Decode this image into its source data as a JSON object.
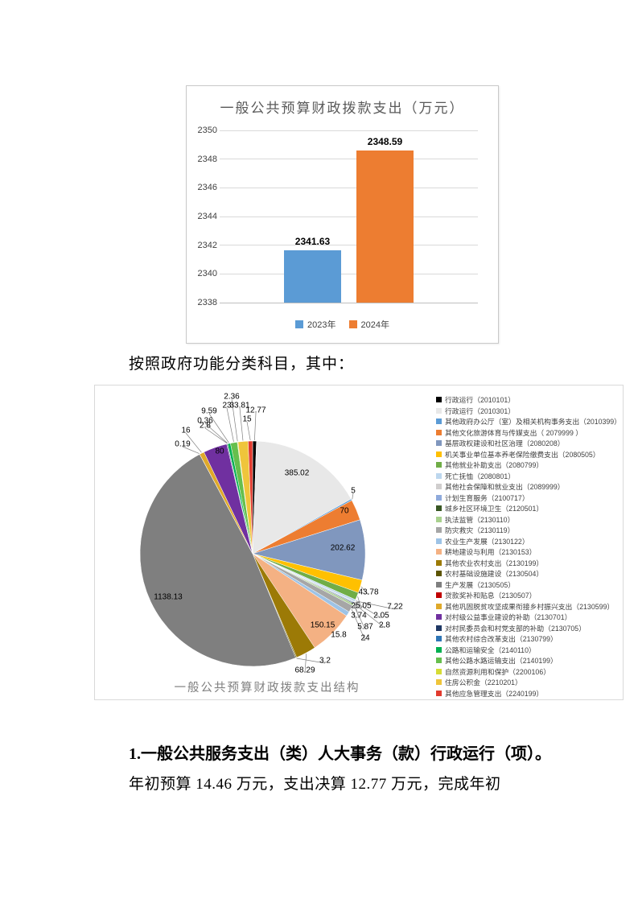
{
  "document": {
    "intro": "按照政府功能分类科目，其中：",
    "section_heading": "1.一般公共服务支出（类）人大事务（款）行政运行（项）。",
    "section_body": "年初预算 14.46 万元，支出决算 12.77 万元，完成年初"
  },
  "chart_data": [
    {
      "type": "bar",
      "title": "一般公共预算财政拨款支出（万元）",
      "categories": [
        "2023年",
        "2024年"
      ],
      "values": [
        2341.63,
        2348.59
      ],
      "value_labels": [
        "2341.63",
        "2348.59"
      ],
      "colors": [
        "#5B9BD5",
        "#ED7D31"
      ],
      "ylim": [
        2338,
        2350
      ],
      "ytick_step": 2,
      "grid": true,
      "legend_position": "bottom"
    },
    {
      "type": "pie",
      "title": "一般公共预算财政拨款支出结构",
      "legend_position": "right",
      "total": 2348.59,
      "slices": [
        {
          "label": "行政运行（2010101）",
          "value": 12.77,
          "color": "#000000"
        },
        {
          "label": "行政运行（2010301）",
          "value": 385.02,
          "color": "#E8E8E8"
        },
        {
          "label": "其他政府办公厅（室）及相关机构事务支出（2010399）",
          "value": 5,
          "color": "#5B9BD5"
        },
        {
          "label": "其他文化旅游体育与传媒支出（ 2079999 ）",
          "value": 70,
          "color": "#ED7D31"
        },
        {
          "label": "基层政权建设和社区治理（2080208）",
          "value": 202.62,
          "color": "#8097BE"
        },
        {
          "label": "机关事业单位基本养老保险缴费支出（2080505）",
          "value": 43.78,
          "color": "#FFC000"
        },
        {
          "label": "其他就业补助支出（2080799）",
          "value": 25.05,
          "color": "#70AD47"
        },
        {
          "label": "死亡抚恤（2080801）",
          "value": 7.22,
          "color": "#BDD7EE"
        },
        {
          "label": "其他社会保障和就业支出（2089999）",
          "value": 2.05,
          "color": "#D0CECE"
        },
        {
          "label": "计划生育服务（2100717）",
          "value": 3.74,
          "color": "#8FAADC"
        },
        {
          "label": "城乡社区环境卫生（2120501）",
          "value": 2.8,
          "color": "#385723"
        },
        {
          "label": "执法监管（2130110）",
          "value": 5.87,
          "color": "#A9D18E"
        },
        {
          "label": "防灾救灾（2130119）",
          "value": 24,
          "color": "#A6A6A6"
        },
        {
          "label": "农业生产发展（2130122）",
          "value": 15.8,
          "color": "#9DC3E6"
        },
        {
          "label": "耕地建设与利用（2130153）",
          "value": 150.15,
          "color": "#F4B183"
        },
        {
          "label": "其他农业农村支出（2130199）",
          "value": 68.29,
          "color": "#9C7A06"
        },
        {
          "label": "农村基础设施建设（2130504）",
          "value": 3.2,
          "color": "#5C5400"
        },
        {
          "label": "生产发展（2130505）",
          "value": 1138.13,
          "color": "#7F7F7F"
        },
        {
          "label": "贷款奖补和贴息（2130507）",
          "value": 0.19,
          "color": "#C00000"
        },
        {
          "label": "其他巩固脱贫攻坚成果衔接乡村振兴支出（2130599）",
          "value": 16,
          "color": "#DFA92A"
        },
        {
          "label": "对村级公益事业建设的补助（2130701）",
          "value": 80,
          "color": "#7030A0"
        },
        {
          "label": "对村民委员会和村党支部的补助（2130705）",
          "value": 2.8,
          "color": "#1F3864"
        },
        {
          "label": "其他农村综合改革支出（2130799）",
          "value": 0.36,
          "color": "#2E75B6"
        },
        {
          "label": "公路和运输安全（2140110）",
          "value": 9.59,
          "color": "#00B050"
        },
        {
          "label": "其他公路水路运输支出（2140199）",
          "value": 23,
          "color": "#66BF4D"
        },
        {
          "label": "自然资源利用和保护（2200106）",
          "value": 2.36,
          "color": "#D6DC35"
        },
        {
          "label": "住房公积金（2210201）",
          "value": 33.81,
          "color": "#EFC53B"
        },
        {
          "label": "其他应急管理支出（2240199）",
          "value": 15,
          "color": "#E23B2E"
        }
      ]
    }
  ]
}
